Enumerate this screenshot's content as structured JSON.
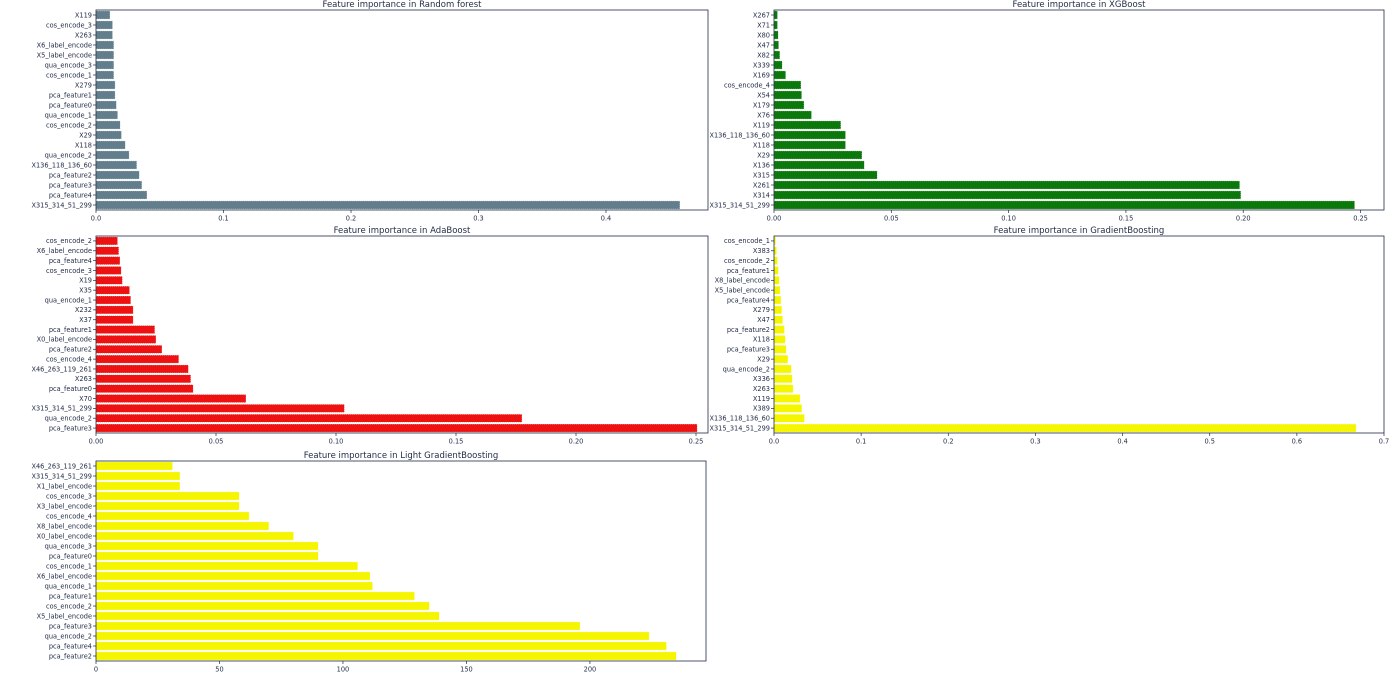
{
  "chart_data": [
    {
      "type": "bar",
      "orientation": "horizontal",
      "title": "Feature importance in Random forest",
      "color": "#627d8c",
      "categories": [
        "X119",
        "cos_encode_3",
        "X263",
        "X6_label_encode",
        "X5_label_encode",
        "qua_encode_3",
        "cos_encode_1",
        "X279",
        "pca_feature1",
        "pca_feature0",
        "qua_encode_1",
        "cos_encode_2",
        "X29",
        "X118",
        "qua_encode_2",
        "X136_118_136_60",
        "pca_feature2",
        "pca_feature3",
        "pca_feature4",
        "X315_314_51_299"
      ],
      "values": [
        0.011,
        0.013,
        0.013,
        0.014,
        0.014,
        0.014,
        0.014,
        0.015,
        0.015,
        0.016,
        0.017,
        0.019,
        0.02,
        0.023,
        0.026,
        0.032,
        0.034,
        0.036,
        0.04,
        0.458
      ],
      "xlim": [
        0,
        0.48
      ],
      "xticks": [
        0,
        0.1,
        0.2,
        0.3,
        0.4
      ],
      "xtick_labels": [
        "0.0",
        "0.1",
        "0.2",
        "0.3",
        "0.4"
      ]
    },
    {
      "type": "bar",
      "orientation": "horizontal",
      "title": "Feature importance in XGBoost",
      "color": "#0a780a",
      "categories": [
        "X267",
        "X71",
        "X80",
        "X47",
        "X82",
        "X339",
        "X169",
        "cos_encode_4",
        "X54",
        "X179",
        "X76",
        "X119",
        "X136_118_136_60",
        "X118",
        "X29",
        "X136",
        "X315",
        "X261",
        "X314",
        "X315_314_51_299"
      ],
      "values": [
        0.0015,
        0.0015,
        0.0018,
        0.002,
        0.0025,
        0.0035,
        0.005,
        0.0115,
        0.0118,
        0.0128,
        0.016,
        0.0285,
        0.0305,
        0.0305,
        0.0375,
        0.0385,
        0.044,
        0.1985,
        0.199,
        0.2475
      ],
      "xlim": [
        0,
        0.26
      ],
      "xticks": [
        0,
        0.05,
        0.1,
        0.15,
        0.2,
        0.25
      ],
      "xtick_labels": [
        "0.00",
        "0.05",
        "0.10",
        "0.15",
        "0.20",
        "0.25"
      ]
    },
    {
      "type": "bar",
      "orientation": "horizontal",
      "title": "Feature importance in AdaBoost",
      "color": "#ee1111",
      "categories": [
        "cos_encode_2",
        "X6_label_encode",
        "pca_feature4",
        "cos_encode_3",
        "X19",
        "X35",
        "qua_encode_1",
        "X232",
        "X37",
        "pca_feature1",
        "X0_label_encode",
        "pca_feature2",
        "cos_encode_4",
        "X46_263_119_261",
        "X263",
        "pca_feature0",
        "X70",
        "X315_314_51_299",
        "qua_encode_2",
        "pca_feature3"
      ],
      "values": [
        0.009,
        0.0095,
        0.01,
        0.0105,
        0.011,
        0.014,
        0.0145,
        0.0155,
        0.0155,
        0.0245,
        0.025,
        0.0275,
        0.0345,
        0.0385,
        0.0395,
        0.0405,
        0.0625,
        0.1035,
        0.1775,
        0.2505
      ],
      "xlim": [
        0,
        0.255
      ],
      "xticks": [
        0,
        0.05,
        0.1,
        0.15,
        0.2,
        0.25
      ],
      "xtick_labels": [
        "0.00",
        "0.05",
        "0.10",
        "0.15",
        "0.20",
        "0.25"
      ]
    },
    {
      "type": "bar",
      "orientation": "horizontal",
      "title": "Feature importance in GradientBoosting",
      "color": "#f5f500",
      "categories": [
        "cos_encode_1",
        "X383",
        "cos_encode_2",
        "pca_feature1",
        "X8_label_encode",
        "X5_label_encode",
        "pca_feature4",
        "X279",
        "X47",
        "pca_feature2",
        "X118",
        "pca_feature3",
        "X29",
        "qua_encode_2",
        "X336",
        "X263",
        "X119",
        "X389",
        "X136_118_136_60",
        "X315_314_51_299"
      ],
      "values": [
        0.002,
        0.003,
        0.004,
        0.005,
        0.006,
        0.007,
        0.008,
        0.009,
        0.01,
        0.012,
        0.013,
        0.014,
        0.016,
        0.02,
        0.021,
        0.022,
        0.03,
        0.032,
        0.035,
        0.668
      ],
      "xlim": [
        0,
        0.7
      ],
      "xticks": [
        0,
        0.1,
        0.2,
        0.3,
        0.4,
        0.5,
        0.6,
        0.7
      ],
      "xtick_labels": [
        "0.0",
        "0.1",
        "0.2",
        "0.3",
        "0.4",
        "0.5",
        "0.6",
        "0.7"
      ]
    },
    {
      "type": "bar",
      "orientation": "horizontal",
      "title": "Feature importance in Light GradientBoosting",
      "color": "#f5f500",
      "categories": [
        "X46_263_119_261",
        "X315_314_51_299",
        "X1_label_encode",
        "cos_encode_3",
        "X3_label_encode",
        "cos_encode_4",
        "X8_label_encode",
        "X0_label_encode",
        "qua_encode_3",
        "pca_feature0",
        "cos_encode_1",
        "X6_label_encode",
        "qua_encode_1",
        "pca_feature1",
        "cos_encode_2",
        "X5_label_encode",
        "pca_feature3",
        "qua_encode_2",
        "pca_feature4",
        "pca_feature2"
      ],
      "values": [
        31,
        34,
        34,
        58,
        58,
        62,
        70,
        80,
        90,
        90,
        106,
        111,
        112,
        129,
        135,
        139,
        196,
        224,
        231,
        235
      ],
      "xlim": [
        0,
        247
      ],
      "xticks": [
        0,
        50,
        100,
        150,
        200
      ],
      "xtick_labels": [
        "0",
        "50",
        "100",
        "150",
        "200"
      ]
    }
  ]
}
